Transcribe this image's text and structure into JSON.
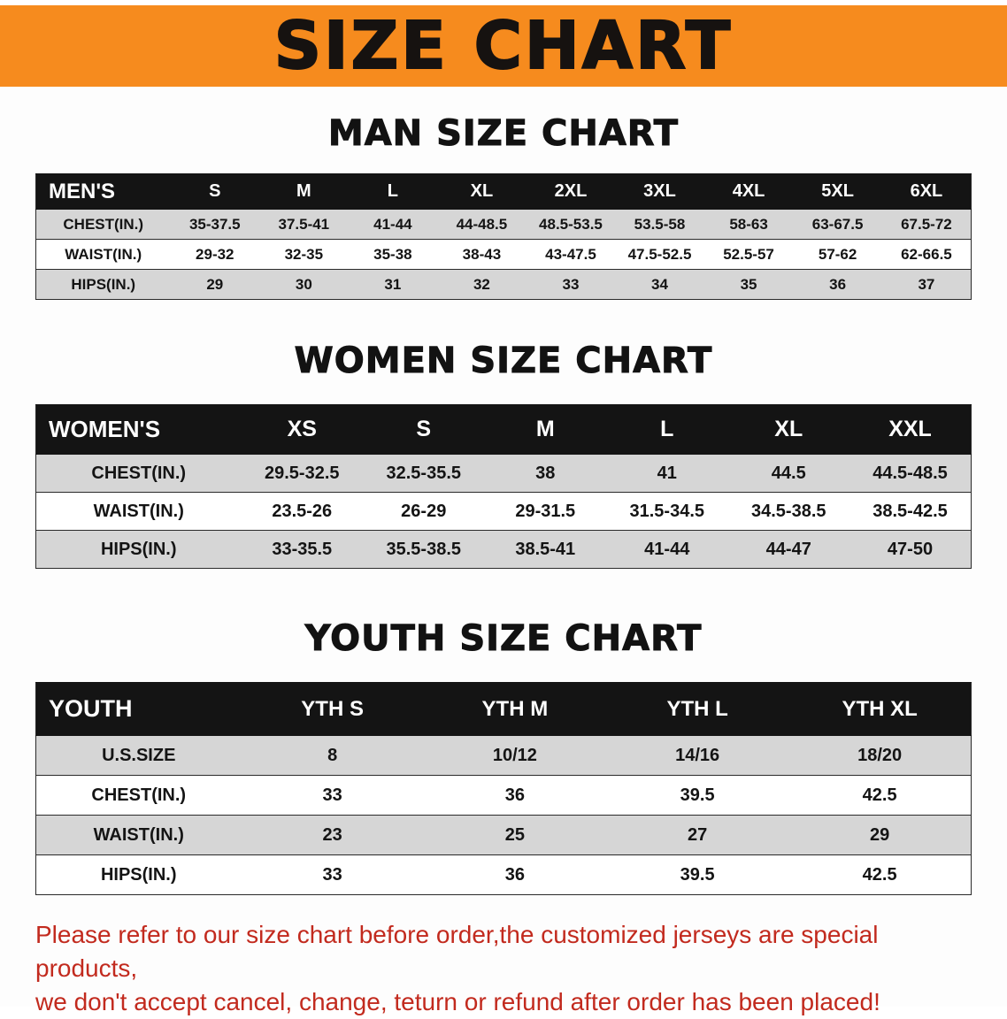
{
  "banner": {
    "title": "SIZE CHART",
    "bg_color": "#f68b1e",
    "text_color": "#161210"
  },
  "sections": [
    {
      "heading": "MAN SIZE CHART",
      "table": {
        "header": [
          "MEN'S",
          "S",
          "M",
          "L",
          "XL",
          "2XL",
          "3XL",
          "4XL",
          "5XL",
          "6XL"
        ],
        "rows": [
          [
            "CHEST(IN.)",
            "35-37.5",
            "37.5-41",
            "41-44",
            "44-48.5",
            "48.5-53.5",
            "53.5-58",
            "58-63",
            "63-67.5",
            "67.5-72"
          ],
          [
            "WAIST(IN.)",
            "29-32",
            "32-35",
            "35-38",
            "38-43",
            "43-47.5",
            "47.5-52.5",
            "52.5-57",
            "57-62",
            "62-66.5"
          ],
          [
            "HIPS(IN.)",
            "29",
            "30",
            "31",
            "32",
            "33",
            "34",
            "35",
            "36",
            "37"
          ]
        ]
      }
    },
    {
      "heading": "WOMEN SIZE CHART",
      "table": {
        "header": [
          "WOMEN'S",
          "XS",
          "S",
          "M",
          "L",
          "XL",
          "XXL"
        ],
        "rows": [
          [
            "CHEST(IN.)",
            "29.5-32.5",
            "32.5-35.5",
            "38",
            "41",
            "44.5",
            "44.5-48.5"
          ],
          [
            "WAIST(IN.)",
            "23.5-26",
            "26-29",
            "29-31.5",
            "31.5-34.5",
            "34.5-38.5",
            "38.5-42.5"
          ],
          [
            "HIPS(IN.)",
            "33-35.5",
            "35.5-38.5",
            "38.5-41",
            "41-44",
            "44-47",
            "47-50"
          ]
        ]
      }
    },
    {
      "heading": "YOUTH SIZE CHART",
      "table": {
        "header": [
          "YOUTH",
          "YTH S",
          "YTH M",
          "YTH L",
          "YTH XL"
        ],
        "rows": [
          [
            "U.S.SIZE",
            "8",
            "10/12",
            "14/16",
            "18/20"
          ],
          [
            "CHEST(IN.)",
            "33",
            "36",
            "39.5",
            "42.5"
          ],
          [
            "WAIST(IN.)",
            "23",
            "25",
            "27",
            "29"
          ],
          [
            "HIPS(IN.)",
            "33",
            "36",
            "39.5",
            "42.5"
          ]
        ]
      }
    }
  ],
  "disclaimer": {
    "line1": "Please refer to our size chart before order,the customized jerseys are special products,",
    "line2": "we don't accept cancel, change, teturn or refund after order has been placed!",
    "color": "#c22a1e"
  },
  "table_colors": {
    "header_bg": "#141414",
    "header_text": "#ffffff",
    "stripe_bg": "#d6d6d6"
  }
}
